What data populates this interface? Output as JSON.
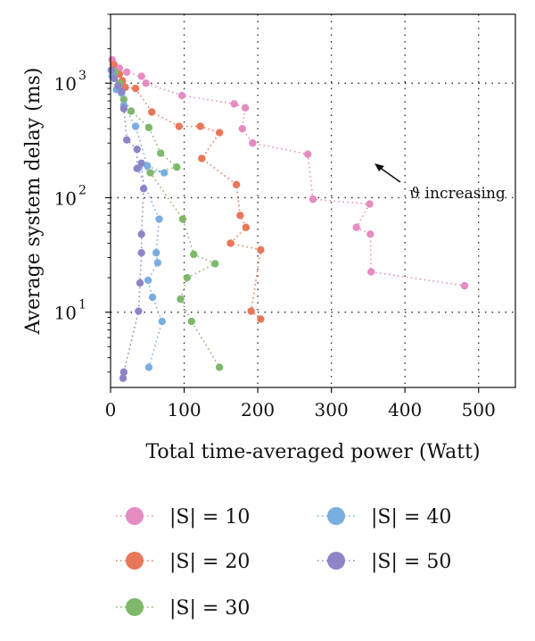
{
  "chart_data": {
    "type": "scatter",
    "title": "",
    "xlabel": "Total time-averaged power (Watt)",
    "ylabel": "Average system delay (ms)",
    "xlim": [
      0,
      550
    ],
    "ylim": [
      2.2,
      4000
    ],
    "y_scale": "log",
    "grid": true,
    "x_ticks": [
      "0",
      "100",
      "200",
      "300",
      "400",
      "500"
    ],
    "y_ticks": [
      {
        "base": "10",
        "exp": "1",
        "value": 10
      },
      {
        "base": "10",
        "exp": "2",
        "value": 100
      },
      {
        "base": "10",
        "exp": "3",
        "value": 1000
      }
    ],
    "annotation": {
      "text": "ϑ increasing",
      "arrow_to": [
        360,
        260
      ]
    },
    "legend_position": "bottom",
    "series": [
      {
        "name": "|S| = 10",
        "color": "#e58cc2",
        "points": [
          [
            2,
            1600
          ],
          [
            5,
            1450
          ],
          [
            12,
            1350
          ],
          [
            22,
            1250
          ],
          [
            42,
            1150
          ],
          [
            48,
            1000
          ],
          [
            97,
            780
          ],
          [
            168,
            660
          ],
          [
            183,
            610
          ],
          [
            179,
            400
          ],
          [
            193,
            300
          ],
          [
            268,
            240
          ],
          [
            275,
            97
          ],
          [
            352,
            88
          ],
          [
            334,
            55
          ],
          [
            353,
            48
          ],
          [
            354,
            22.5
          ],
          [
            481,
            17
          ]
        ]
      },
      {
        "name": "|S| = 20",
        "color": "#e8775a",
        "points": [
          [
            4,
            1450
          ],
          [
            12,
            1200
          ],
          [
            16,
            1050
          ],
          [
            20,
            920
          ],
          [
            34,
            900
          ],
          [
            56,
            560
          ],
          [
            93,
            420
          ],
          [
            122,
            420
          ],
          [
            148,
            370
          ],
          [
            124,
            220
          ],
          [
            171,
            130
          ],
          [
            176,
            70
          ],
          [
            184,
            55
          ],
          [
            163,
            40
          ],
          [
            204,
            35
          ],
          [
            191,
            10.2
          ],
          [
            204,
            8.7
          ]
        ]
      },
      {
        "name": "|S| = 30",
        "color": "#7fb86a",
        "points": [
          [
            6,
            1250
          ],
          [
            12,
            1000
          ],
          [
            18,
            720
          ],
          [
            28,
            570
          ],
          [
            52,
            410
          ],
          [
            68,
            245
          ],
          [
            90,
            185
          ],
          [
            54,
            165
          ],
          [
            98,
            65
          ],
          [
            113,
            32
          ],
          [
            142,
            26.5
          ],
          [
            104,
            20
          ],
          [
            95,
            13
          ],
          [
            110,
            8.3
          ],
          [
            148,
            3.3
          ]
        ]
      },
      {
        "name": "|S| = 40",
        "color": "#7aade0",
        "points": [
          [
            2,
            1150
          ],
          [
            8,
            880
          ],
          [
            15,
            820
          ],
          [
            18,
            640
          ],
          [
            34,
            420
          ],
          [
            50,
            190
          ],
          [
            73,
            165
          ],
          [
            37,
            180
          ],
          [
            66,
            65
          ],
          [
            62,
            33
          ],
          [
            64,
            27
          ],
          [
            51,
            19
          ],
          [
            57,
            13.5
          ],
          [
            70,
            8.3
          ],
          [
            52,
            3.3
          ]
        ]
      },
      {
        "name": "|S| = 50",
        "color": "#8c86c8",
        "points": [
          [
            1,
            1300
          ],
          [
            5,
            1100
          ],
          [
            10,
            950
          ],
          [
            15,
            850
          ],
          [
            18,
            600
          ],
          [
            22,
            320
          ],
          [
            36,
            265
          ],
          [
            36,
            180
          ],
          [
            42,
            200
          ],
          [
            45,
            120
          ],
          [
            42,
            48
          ],
          [
            42,
            33
          ],
          [
            40,
            18
          ],
          [
            38,
            10.2
          ],
          [
            18,
            3
          ],
          [
            17,
            2.65
          ]
        ]
      }
    ]
  }
}
